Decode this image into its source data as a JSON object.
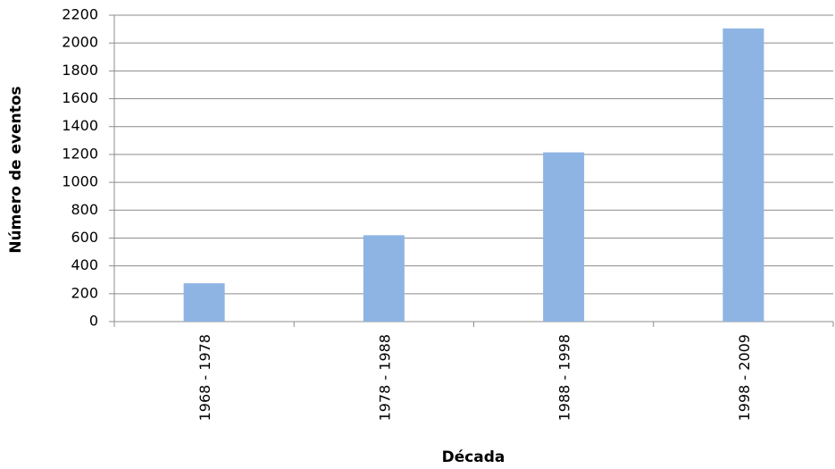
{
  "chart_data": {
    "type": "bar",
    "categories": [
      "1968 - 1978",
      "1978 - 1988",
      "1988 - 1998",
      "1998 - 2009"
    ],
    "values": [
      275,
      620,
      1215,
      2105
    ],
    "color": "#8eb4e3",
    "x_label": "Década",
    "y_label": "Número de eventos",
    "ylim": [
      0,
      2200
    ],
    "yticks": [
      0,
      200,
      400,
      600,
      800,
      1000,
      1200,
      1400,
      1600,
      1800,
      2000,
      2200
    ],
    "grid": true
  }
}
